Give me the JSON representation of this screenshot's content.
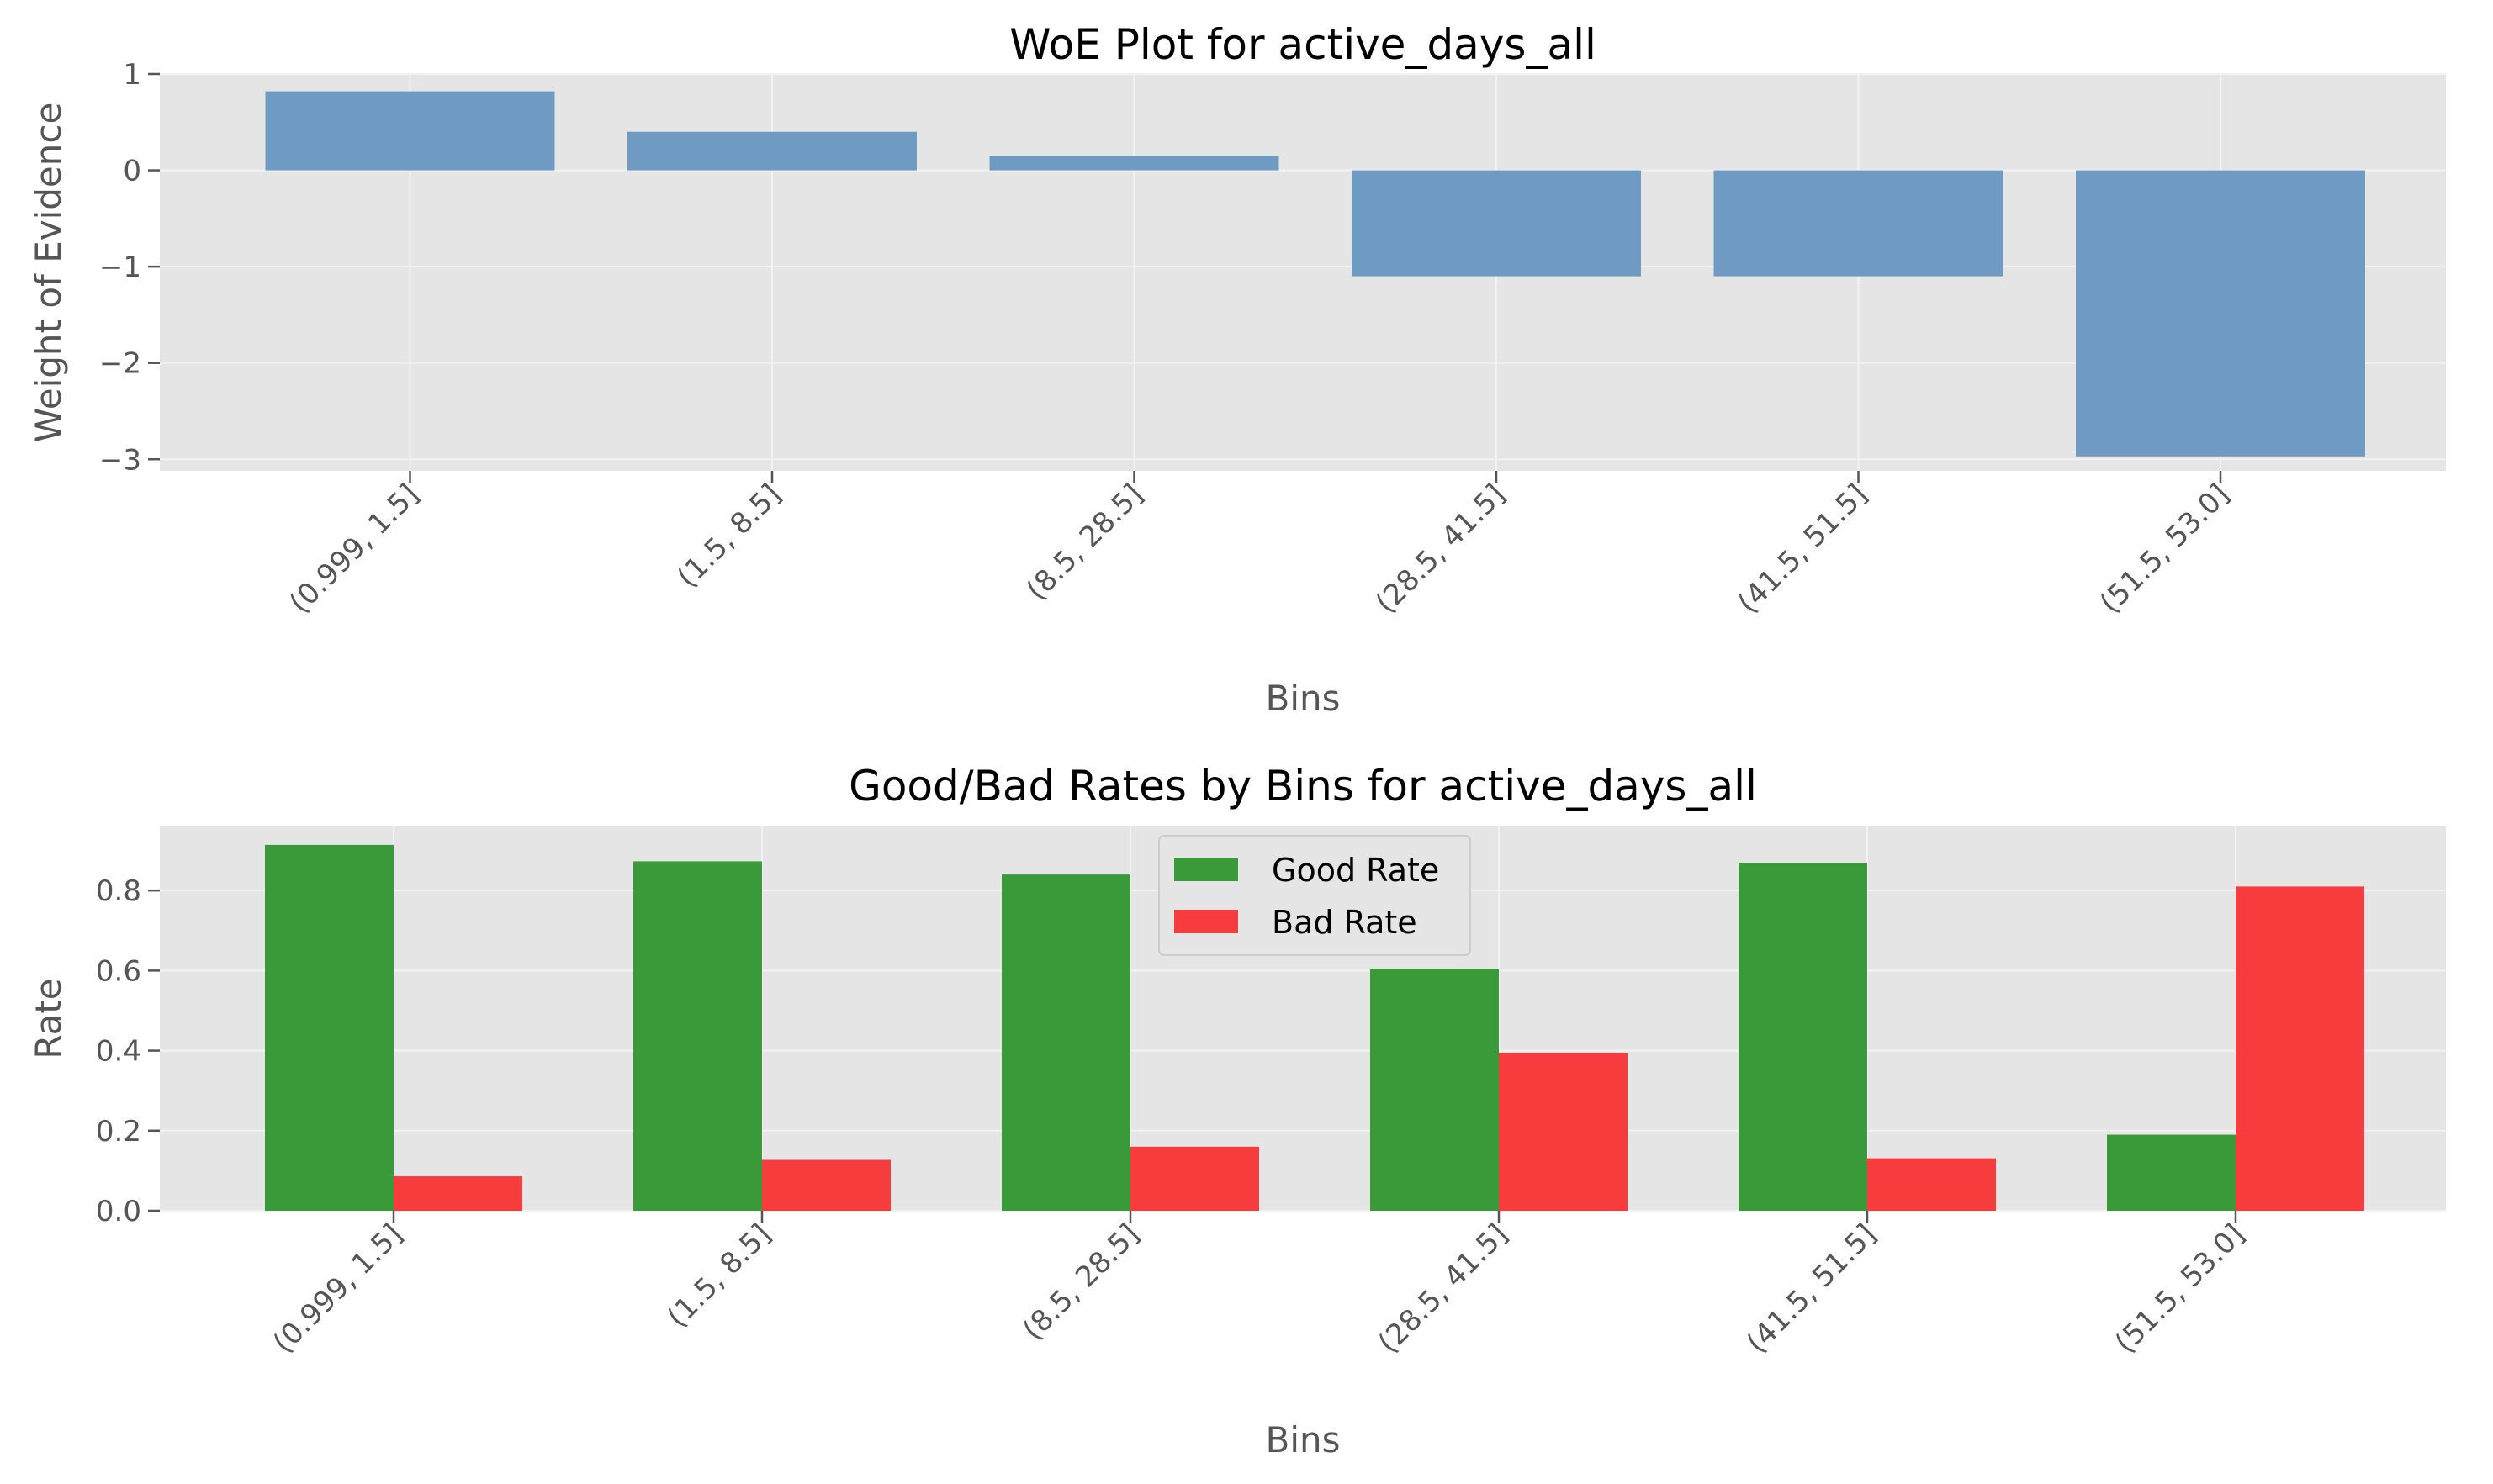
{
  "chart_data": [
    {
      "type": "bar",
      "title": "WoE Plot for active_days_all",
      "xlabel": "Bins",
      "ylabel": "Weight of Evidence",
      "categories": [
        "(0.999, 1.5]",
        "(1.5, 8.5]",
        "(8.5, 28.5]",
        "(28.5, 41.5]",
        "(41.5, 51.5]",
        "(51.5, 53.0]"
      ],
      "values": [
        0.82,
        0.4,
        0.15,
        -1.1,
        -1.1,
        -2.97
      ],
      "yticks": [
        "1",
        "0",
        "−1",
        "−2",
        "−3"
      ],
      "ytick_values": [
        1,
        0,
        -1,
        -2,
        -3
      ],
      "ylim": [
        -3.12,
        1.0
      ],
      "grid": true,
      "color": "#6f9bc3"
    },
    {
      "type": "bar",
      "title": "Good/Bad Rates by Bins for active_days_all",
      "xlabel": "Bins",
      "ylabel": "Rate",
      "categories": [
        "(0.999, 1.5]",
        "(1.5, 8.5]",
        "(8.5, 28.5]",
        "(28.5, 41.5]",
        "(41.5, 51.5]",
        "(51.5, 53.0]"
      ],
      "series": [
        {
          "name": "Good Rate",
          "values": [
            0.914,
            0.873,
            0.84,
            0.605,
            0.869,
            0.19
          ],
          "color": "#3a9a3a"
        },
        {
          "name": "Bad Rate",
          "values": [
            0.086,
            0.127,
            0.16,
            0.395,
            0.131,
            0.81
          ],
          "color": "#f63c3c"
        }
      ],
      "yticks": [
        "0.0",
        "0.2",
        "0.4",
        "0.6",
        "0.8"
      ],
      "ytick_values": [
        0,
        0.2,
        0.4,
        0.6,
        0.8
      ],
      "ylim": [
        0,
        0.96
      ],
      "grid": true,
      "legend": "upper-center"
    }
  ]
}
